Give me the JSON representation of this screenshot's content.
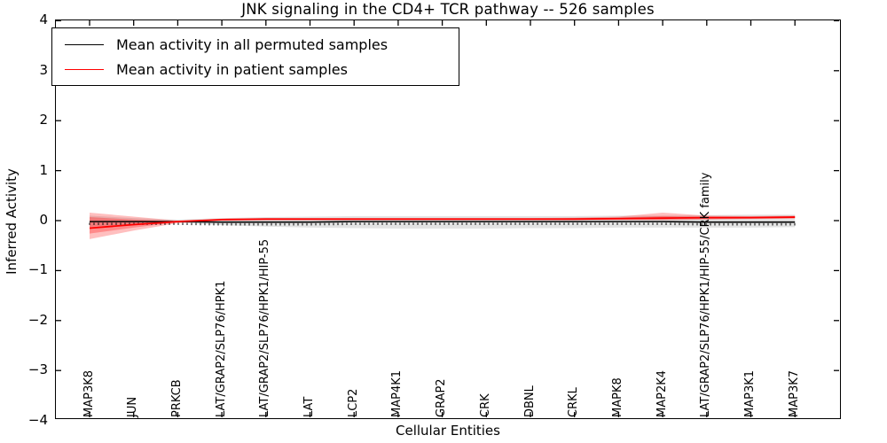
{
  "chart_data": {
    "type": "line",
    "title": "JNK signaling in the CD4+ TCR pathway -- 526 samples",
    "xlabel": "Cellular Entities",
    "ylabel": "Inferred Activity",
    "ylim": [
      -4,
      4
    ],
    "grid": false,
    "legend_position": "upper left",
    "y_ticks": [
      {
        "value": 4,
        "label": "4"
      },
      {
        "value": 3,
        "label": "3"
      },
      {
        "value": 2,
        "label": "2"
      },
      {
        "value": 1,
        "label": "1"
      },
      {
        "value": 0,
        "label": "0"
      },
      {
        "value": -1,
        "label": "−1"
      },
      {
        "value": -2,
        "label": "−2"
      },
      {
        "value": -3,
        "label": "−3"
      },
      {
        "value": -4,
        "label": "−4"
      }
    ],
    "categories": [
      "MAP3K8",
      "JUN",
      "PRKCB",
      "LAT/GRAP2/SLP76/HPK1",
      "LAT/GRAP2/SLP76/HPK1/HIP-55",
      "LAT",
      "LCP2",
      "MAP4K1",
      "GRAP2",
      "CRK",
      "DBNL",
      "CRKL",
      "MAPK8",
      "MAP2K4",
      "LAT/GRAP2/SLP76/HPK1/HIP-55/CRK family",
      "MAP3K1",
      "MAP3K7"
    ],
    "series": [
      {
        "name": "Mean activity in all permuted samples",
        "color": "#000000",
        "line_width": 1.6,
        "tick_markers": true,
        "values": [
          -0.02,
          -0.02,
          -0.02,
          -0.03,
          -0.03,
          -0.03,
          -0.02,
          -0.02,
          -0.02,
          -0.02,
          -0.02,
          -0.02,
          -0.02,
          -0.02,
          -0.03,
          -0.03,
          -0.03
        ],
        "band_upper": [
          0.1,
          0.05,
          0.02,
          0.05,
          0.07,
          0.08,
          0.09,
          0.09,
          0.09,
          0.09,
          0.09,
          0.09,
          0.1,
          0.1,
          0.11,
          0.12,
          0.12
        ],
        "band_lower": [
          -0.12,
          -0.07,
          -0.04,
          -0.09,
          -0.12,
          -0.14,
          -0.15,
          -0.16,
          -0.16,
          -0.16,
          -0.15,
          -0.15,
          -0.14,
          -0.14,
          -0.14,
          -0.14,
          -0.13
        ],
        "band_color": "#000000",
        "band_opacity": 0.11
      },
      {
        "name": "Mean activity in patient samples",
        "color": "#ff0000",
        "line_width": 1.8,
        "tick_markers": false,
        "values": [
          -0.15,
          -0.08,
          -0.02,
          0.02,
          0.03,
          0.03,
          0.03,
          0.03,
          0.03,
          0.03,
          0.03,
          0.03,
          0.04,
          0.05,
          0.06,
          0.06,
          0.07
        ],
        "band_upper": [
          0.16,
          0.08,
          0.0,
          0.04,
          0.05,
          0.05,
          0.05,
          0.05,
          0.05,
          0.05,
          0.05,
          0.06,
          0.08,
          0.16,
          0.1,
          0.09,
          0.1
        ],
        "band_lower": [
          -0.37,
          -0.2,
          -0.05,
          0.0,
          0.01,
          0.01,
          0.01,
          0.01,
          0.01,
          0.01,
          0.01,
          0.01,
          0.01,
          0.01,
          0.02,
          0.03,
          0.04
        ],
        "band_color": "#ff0000",
        "band_opacity": 0.25,
        "inner_band_upper": [
          0.07,
          0.02,
          -0.01,
          0.03,
          0.04,
          0.04,
          0.04,
          0.04,
          0.04,
          0.04,
          0.04,
          0.05,
          0.06,
          0.09,
          0.08,
          0.08,
          0.09
        ],
        "inner_band_lower": [
          -0.26,
          -0.14,
          -0.03,
          0.01,
          0.02,
          0.02,
          0.02,
          0.02,
          0.02,
          0.02,
          0.02,
          0.02,
          0.02,
          0.02,
          0.03,
          0.04,
          0.05
        ],
        "inner_band_opacity": 0.28
      }
    ]
  }
}
